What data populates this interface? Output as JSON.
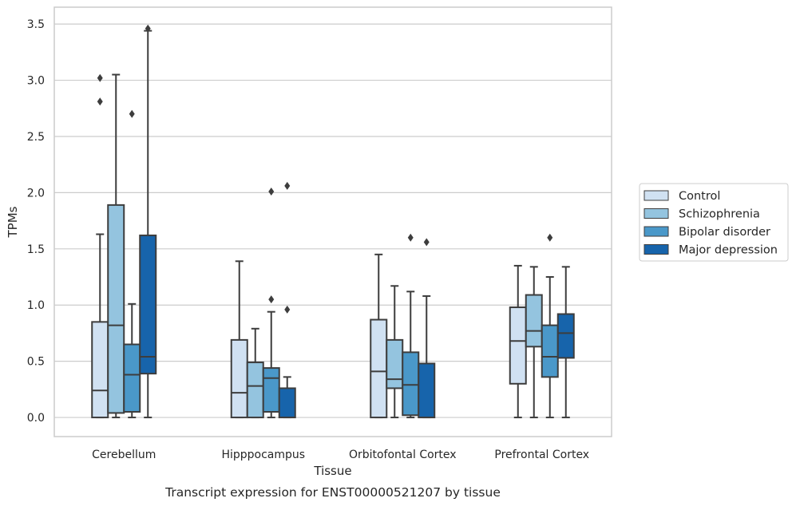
{
  "caption": "Transcript expression for ENST00000521207 by tissue",
  "chart_data": {
    "type": "boxplot",
    "xlabel": "Tissue",
    "ylabel": "TPMs",
    "ylim": [
      -0.17,
      3.65
    ],
    "yticks": [
      0.0,
      0.5,
      1.0,
      1.5,
      2.0,
      2.5,
      3.0,
      3.5
    ],
    "ytick_labels": [
      "0.0",
      "0.5",
      "1.0",
      "1.5",
      "2.0",
      "2.5",
      "3.0",
      "3.5"
    ],
    "grid": "horizontal",
    "legend_position": "right, outside plot",
    "categories": [
      "Cerebellum",
      "Hipppocampus",
      "Orbitofontal Cortex",
      "Prefrontal Cortex"
    ],
    "series": [
      {
        "name": "Control",
        "color": "#d0e1f2",
        "boxes": [
          {
            "whislo": 0.0,
            "q1": 0.0,
            "med": 0.24,
            "q3": 0.85,
            "whishi": 1.63,
            "fliers": [
              2.81,
              3.02
            ]
          },
          {
            "whislo": 0.0,
            "q1": 0.0,
            "med": 0.22,
            "q3": 0.69,
            "whishi": 1.39,
            "fliers": []
          },
          {
            "whislo": 0.0,
            "q1": 0.0,
            "med": 0.41,
            "q3": 0.87,
            "whishi": 1.45,
            "fliers": []
          },
          {
            "whislo": 0.0,
            "q1": 0.3,
            "med": 0.68,
            "q3": 0.98,
            "whishi": 1.35,
            "fliers": []
          }
        ]
      },
      {
        "name": "Schizophrenia",
        "color": "#94c4df",
        "boxes": [
          {
            "whislo": 0.0,
            "q1": 0.04,
            "med": 0.82,
            "q3": 1.89,
            "whishi": 3.05,
            "fliers": []
          },
          {
            "whislo": 0.0,
            "q1": 0.0,
            "med": 0.28,
            "q3": 0.49,
            "whishi": 0.79,
            "fliers": []
          },
          {
            "whislo": 0.0,
            "q1": 0.26,
            "med": 0.34,
            "q3": 0.69,
            "whishi": 1.17,
            "fliers": []
          },
          {
            "whislo": 0.0,
            "q1": 0.63,
            "med": 0.77,
            "q3": 1.09,
            "whishi": 1.34,
            "fliers": []
          }
        ]
      },
      {
        "name": "Bipolar disorder",
        "color": "#4a98c9",
        "boxes": [
          {
            "whislo": 0.0,
            "q1": 0.05,
            "med": 0.38,
            "q3": 0.65,
            "whishi": 1.01,
            "fliers": [
              2.7
            ]
          },
          {
            "whislo": 0.0,
            "q1": 0.05,
            "med": 0.35,
            "q3": 0.44,
            "whishi": 0.94,
            "fliers": [
              1.05,
              2.01
            ]
          },
          {
            "whislo": 0.0,
            "q1": 0.02,
            "med": 0.29,
            "q3": 0.58,
            "whishi": 1.12,
            "fliers": [
              1.6
            ]
          },
          {
            "whislo": 0.0,
            "q1": 0.36,
            "med": 0.54,
            "q3": 0.82,
            "whishi": 1.25,
            "fliers": [
              1.6
            ]
          }
        ]
      },
      {
        "name": "Major depression",
        "color": "#1764ab",
        "boxes": [
          {
            "whislo": 0.0,
            "q1": 0.39,
            "med": 0.54,
            "q3": 1.62,
            "whishi": 3.44,
            "fliers": [
              3.46
            ]
          },
          {
            "whislo": 0.0,
            "q1": 0.0,
            "med": 0.0,
            "q3": 0.26,
            "whishi": 0.36,
            "fliers": [
              0.96,
              2.06
            ]
          },
          {
            "whislo": 0.0,
            "q1": 0.0,
            "med": 0.0,
            "q3": 0.48,
            "whishi": 1.08,
            "fliers": [
              1.56
            ]
          },
          {
            "whislo": 0.0,
            "q1": 0.53,
            "med": 0.75,
            "q3": 0.92,
            "whishi": 1.34,
            "fliers": []
          }
        ]
      }
    ]
  }
}
